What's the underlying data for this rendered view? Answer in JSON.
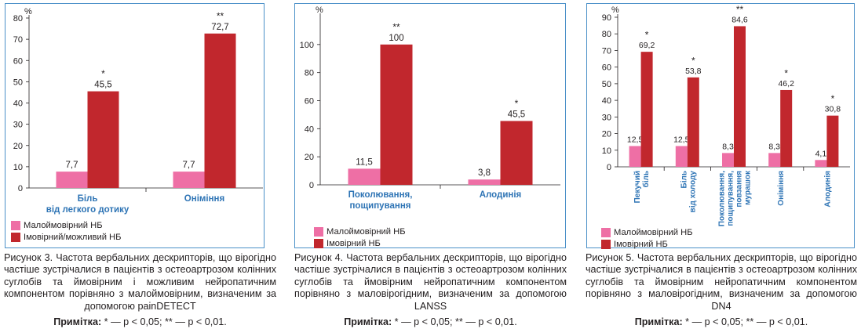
{
  "colors": {
    "low": "#ee6fa5",
    "high": "#c1272d",
    "frame": "#4a90c8",
    "category": "#2e74b5"
  },
  "figures": [
    {
      "caption": "Рисунок 3. Частота вербальних дескрипторів, що вірогідно частіше зустрічалися в пацієнтів з остеоартрозом колінних суглобів та ймовірним і можливим нейропатичним компонентом порівняно з малоймовірним, визначеним за допомогою painDETECT",
      "note_label": "Примітка:",
      "note_text": " * — p < 0,05; ** — p < 0,01.",
      "legend": [
        "Малоймовірний НБ",
        "Імовірний/можливий НБ"
      ]
    },
    {
      "caption": "Рисунок 4. Частота вербальних дескрипторів, що вірогідно частіше зустрічалися в пацієнтів з остеоартрозом колінних суглобів та ймовірним нейропатичним компонентом порівняно з маловірогідним, визначеним за допомогою LANSS",
      "note_label": "Примітка:",
      "note_text": " * — p < 0,05; ** — p < 0,01.",
      "legend": [
        "Малоймовірний НБ",
        "Імовірний НБ"
      ]
    },
    {
      "caption": "Рисунок 5. Частота вербальних дескрипторів, що вірогідно частіше зустрічалися в пацієнтів з остеоартрозом колінних суглобів та ймовірним нейропатичним компонентом порівняно з маловірогідним, визначеним за допомогою DN4",
      "note_label": "Примітка:",
      "note_text": " * — p < 0,05; ** — p < 0,01.",
      "legend": [
        "Малоймовірний НБ",
        "Імовірний НБ"
      ]
    }
  ],
  "chart_data": [
    {
      "type": "bar",
      "ylabel": "%",
      "ylim": [
        0,
        80
      ],
      "yticks": [
        0,
        10,
        20,
        30,
        40,
        50,
        60,
        70,
        80
      ],
      "categories": [
        [
          "Біль",
          "від легкого дотику"
        ],
        [
          "Оніміння"
        ]
      ],
      "series": [
        {
          "name": "Малоймовірний НБ",
          "values": [
            7.7,
            7.7
          ],
          "labels": [
            "7,7",
            "7,7"
          ]
        },
        {
          "name": "Імовірний/можливий НБ",
          "values": [
            45.5,
            72.7
          ],
          "labels": [
            "45,5",
            "72,7"
          ],
          "marks": [
            "*",
            "**"
          ]
        }
      ],
      "legend_position": "bottom-left"
    },
    {
      "type": "bar",
      "ylabel": "%",
      "ylim": [
        0,
        120
      ],
      "yticks": [
        0,
        20,
        40,
        60,
        80,
        100
      ],
      "categories": [
        [
          "Поколювання,",
          "пощипування"
        ],
        [
          "Алодинія"
        ]
      ],
      "series": [
        {
          "name": "Малоймовірний НБ",
          "values": [
            11.5,
            3.8
          ],
          "labels": [
            "11,5",
            "3,8"
          ]
        },
        {
          "name": "Імовірний НБ",
          "values": [
            100,
            45.5
          ],
          "labels": [
            "100",
            "45,5"
          ],
          "marks": [
            "**",
            "*"
          ]
        }
      ],
      "legend_position": "bottom-left"
    },
    {
      "type": "bar",
      "ylabel": "%",
      "ylim": [
        0,
        90
      ],
      "yticks": [
        0,
        10,
        20,
        30,
        40,
        50,
        60,
        70,
        80,
        90
      ],
      "categories": [
        [
          "Пекучий",
          "біль"
        ],
        [
          "Біль",
          "від холоду"
        ],
        [
          "Поколювання,",
          "пощипування,",
          "повзання",
          "мурашок"
        ],
        [
          "Оніміння"
        ],
        [
          "Алодинія"
        ]
      ],
      "series": [
        {
          "name": "Малоймовірний НБ",
          "values": [
            12.5,
            12.5,
            8.3,
            8.3,
            4.1
          ],
          "labels": [
            "12,5",
            "12,5",
            "8,3",
            "8,3",
            "4,1"
          ]
        },
        {
          "name": "Імовірний НБ",
          "values": [
            69.2,
            53.8,
            84.6,
            46.2,
            30.8
          ],
          "labels": [
            "69,2",
            "53,8",
            "84,6",
            "46,2",
            "30,8"
          ],
          "marks": [
            "*",
            "*",
            "**",
            "*",
            "*"
          ]
        }
      ],
      "legend_position": "bottom-left"
    }
  ]
}
